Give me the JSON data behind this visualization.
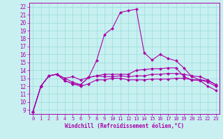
{
  "xlabel": "Windchill (Refroidissement éolien,°C)",
  "ylim": [
    8.5,
    22.5
  ],
  "xlim": [
    -0.5,
    23.5
  ],
  "yticks": [
    9,
    10,
    11,
    12,
    13,
    14,
    15,
    16,
    17,
    18,
    19,
    20,
    21,
    22
  ],
  "xticks": [
    0,
    1,
    2,
    3,
    4,
    5,
    6,
    7,
    8,
    9,
    10,
    11,
    12,
    13,
    14,
    15,
    16,
    17,
    18,
    19,
    20,
    21,
    22,
    23
  ],
  "bg_color": "#c8f0f0",
  "line_color": "#aa00aa",
  "grid_color": "#99dddd",
  "series": [
    [
      8.8,
      12.0,
      13.3,
      13.5,
      13.0,
      13.2,
      12.8,
      13.1,
      15.2,
      18.5,
      19.3,
      21.3,
      21.5,
      21.7,
      16.2,
      15.3,
      16.0,
      15.5,
      15.2,
      14.3,
      13.2,
      12.8,
      12.7,
      12.2
    ],
    [
      8.8,
      12.0,
      13.3,
      13.5,
      13.0,
      12.5,
      12.2,
      13.1,
      13.3,
      13.2,
      13.2,
      13.3,
      13.2,
      13.3,
      13.3,
      13.5,
      13.5,
      13.6,
      13.6,
      13.5,
      13.3,
      13.2,
      12.8,
      12.2
    ],
    [
      8.8,
      12.0,
      13.3,
      13.5,
      12.7,
      12.3,
      12.0,
      12.3,
      12.8,
      12.8,
      13.0,
      13.0,
      12.8,
      12.8,
      12.8,
      12.9,
      12.9,
      12.9,
      13.0,
      13.0,
      12.8,
      12.7,
      12.0,
      11.5
    ],
    [
      8.8,
      12.0,
      13.3,
      13.5,
      12.7,
      12.3,
      12.2,
      13.1,
      13.3,
      13.5,
      13.5,
      13.5,
      13.5,
      14.0,
      14.1,
      14.2,
      14.2,
      14.3,
      14.3,
      13.2,
      12.8,
      12.8,
      12.5,
      12.0
    ]
  ],
  "marker": "D",
  "markersize": 2.2,
  "linewidth": 0.8
}
